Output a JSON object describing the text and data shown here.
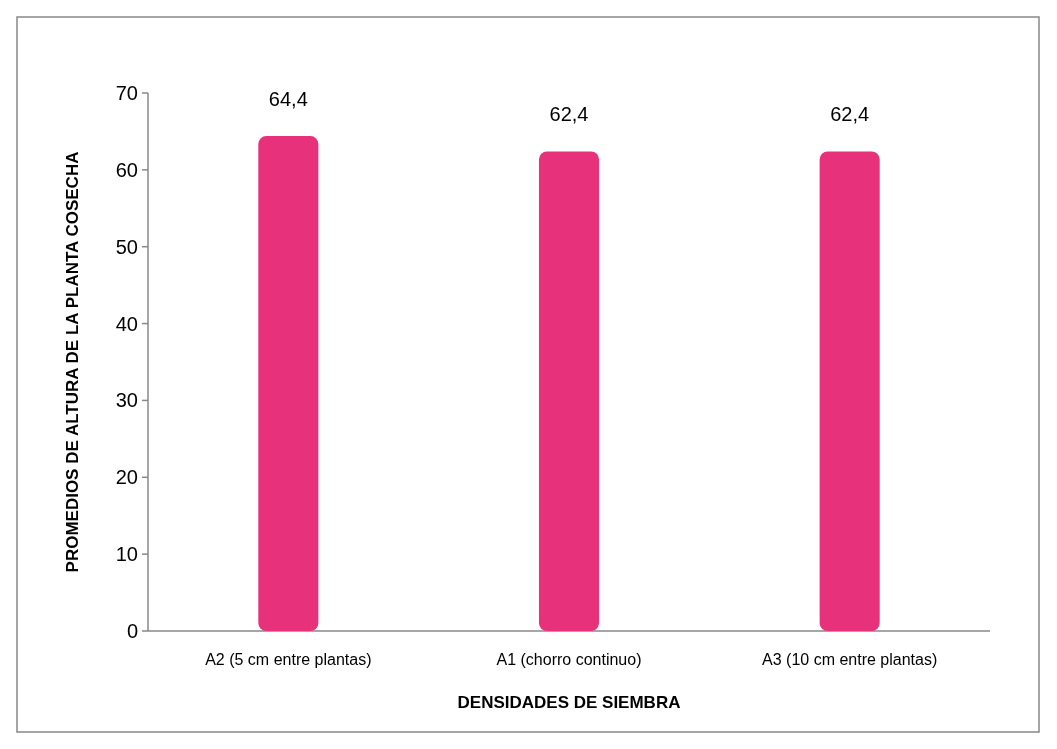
{
  "chart_data": {
    "type": "bar",
    "xlabel": "DENSIDADES DE SIEMBRA",
    "ylabel": "PROMEDIOS DE ALTURA DE LA PLANTA COSECHA",
    "categories": [
      "A2 (5 cm entre plantas)",
      "A1 (chorro continuo)",
      "A3 (10 cm entre plantas)"
    ],
    "values": [
      64.4,
      62.4,
      62.4
    ],
    "value_labels": [
      "64,4",
      "62,4",
      "62,4"
    ],
    "color": "#e8317b",
    "ylim": [
      0,
      70
    ],
    "yticks": [
      0,
      10,
      20,
      30,
      40,
      50,
      60,
      70
    ],
    "grid": false
  }
}
